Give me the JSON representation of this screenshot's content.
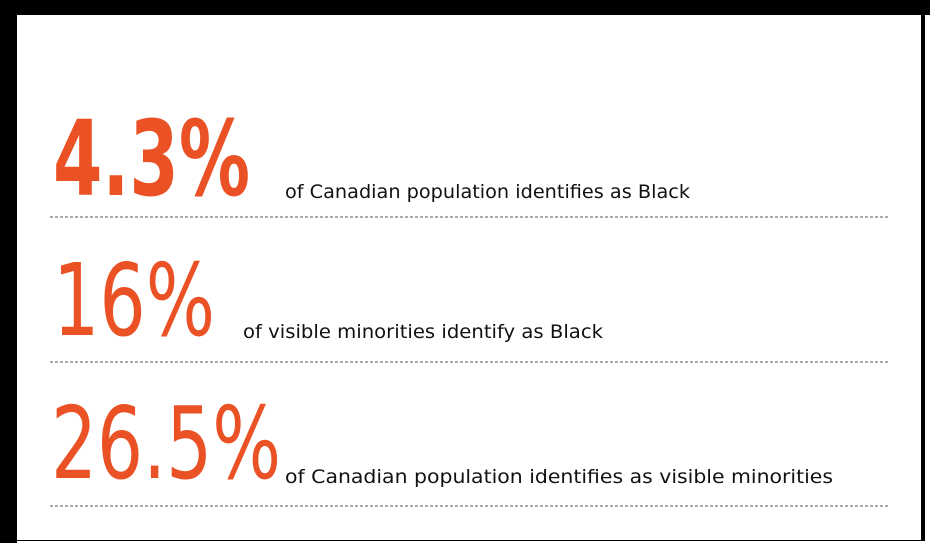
{
  "stats": [
    {
      "figure": "4.3%",
      "text": "of Canadian population identifies as Black"
    },
    {
      "figure": "16%",
      "text": "of visible minorities identify as Black"
    },
    {
      "figure": "26.5%",
      "text": "of Canadian population identifies as visible minorities"
    }
  ]
}
